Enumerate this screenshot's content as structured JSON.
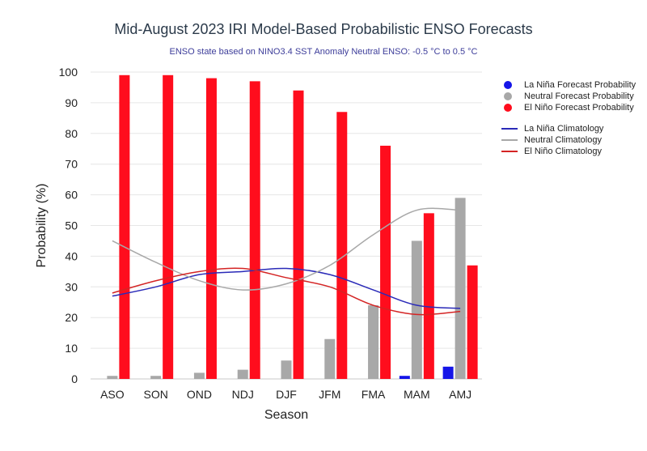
{
  "chart_data": {
    "type": "bar",
    "title": "Mid-August 2023 IRI Model-Based Probabilistic ENSO Forecasts",
    "subtitle": "ENSO state based on NINO3.4 SST Anomaly Neutral ENSO: -0.5 °C to 0.5 °C",
    "xlabel": "Season",
    "ylabel": "Probability (%)",
    "ylim": [
      0,
      100
    ],
    "yticks": [
      0,
      10,
      20,
      30,
      40,
      50,
      60,
      70,
      80,
      90,
      100
    ],
    "grid": true,
    "legend_position": "right",
    "categories": [
      "ASO",
      "SON",
      "OND",
      "NDJ",
      "DJF",
      "JFM",
      "FMA",
      "MAM",
      "AMJ"
    ],
    "series": [
      {
        "name": "La Niña Forecast Probability",
        "kind": "bar",
        "color": "#1515e8",
        "values": [
          0,
          0,
          0,
          0,
          0,
          0,
          0,
          1,
          4
        ]
      },
      {
        "name": "Neutral Forecast Probability",
        "kind": "bar",
        "color": "#a8a8a8",
        "values": [
          1,
          1,
          2,
          3,
          6,
          13,
          24,
          45,
          59
        ]
      },
      {
        "name": "El Niño Forecast Probability",
        "kind": "bar",
        "color": "#ff0d1d",
        "values": [
          99,
          99,
          98,
          97,
          94,
          87,
          76,
          54,
          37
        ]
      },
      {
        "name": "La Niña Climatology",
        "kind": "line",
        "color": "#2a2ab8",
        "values": [
          27,
          30,
          34,
          35,
          36,
          34,
          29,
          24,
          23
        ]
      },
      {
        "name": "Neutral Climatology",
        "kind": "line",
        "color": "#a8a8a8",
        "values": [
          45,
          38,
          32,
          29,
          31,
          37,
          47,
          55,
          55
        ]
      },
      {
        "name": "El Niño Climatology",
        "kind": "line",
        "color": "#d42424",
        "values": [
          28,
          32,
          35,
          36,
          33,
          30,
          24,
          21,
          22
        ]
      }
    ]
  }
}
